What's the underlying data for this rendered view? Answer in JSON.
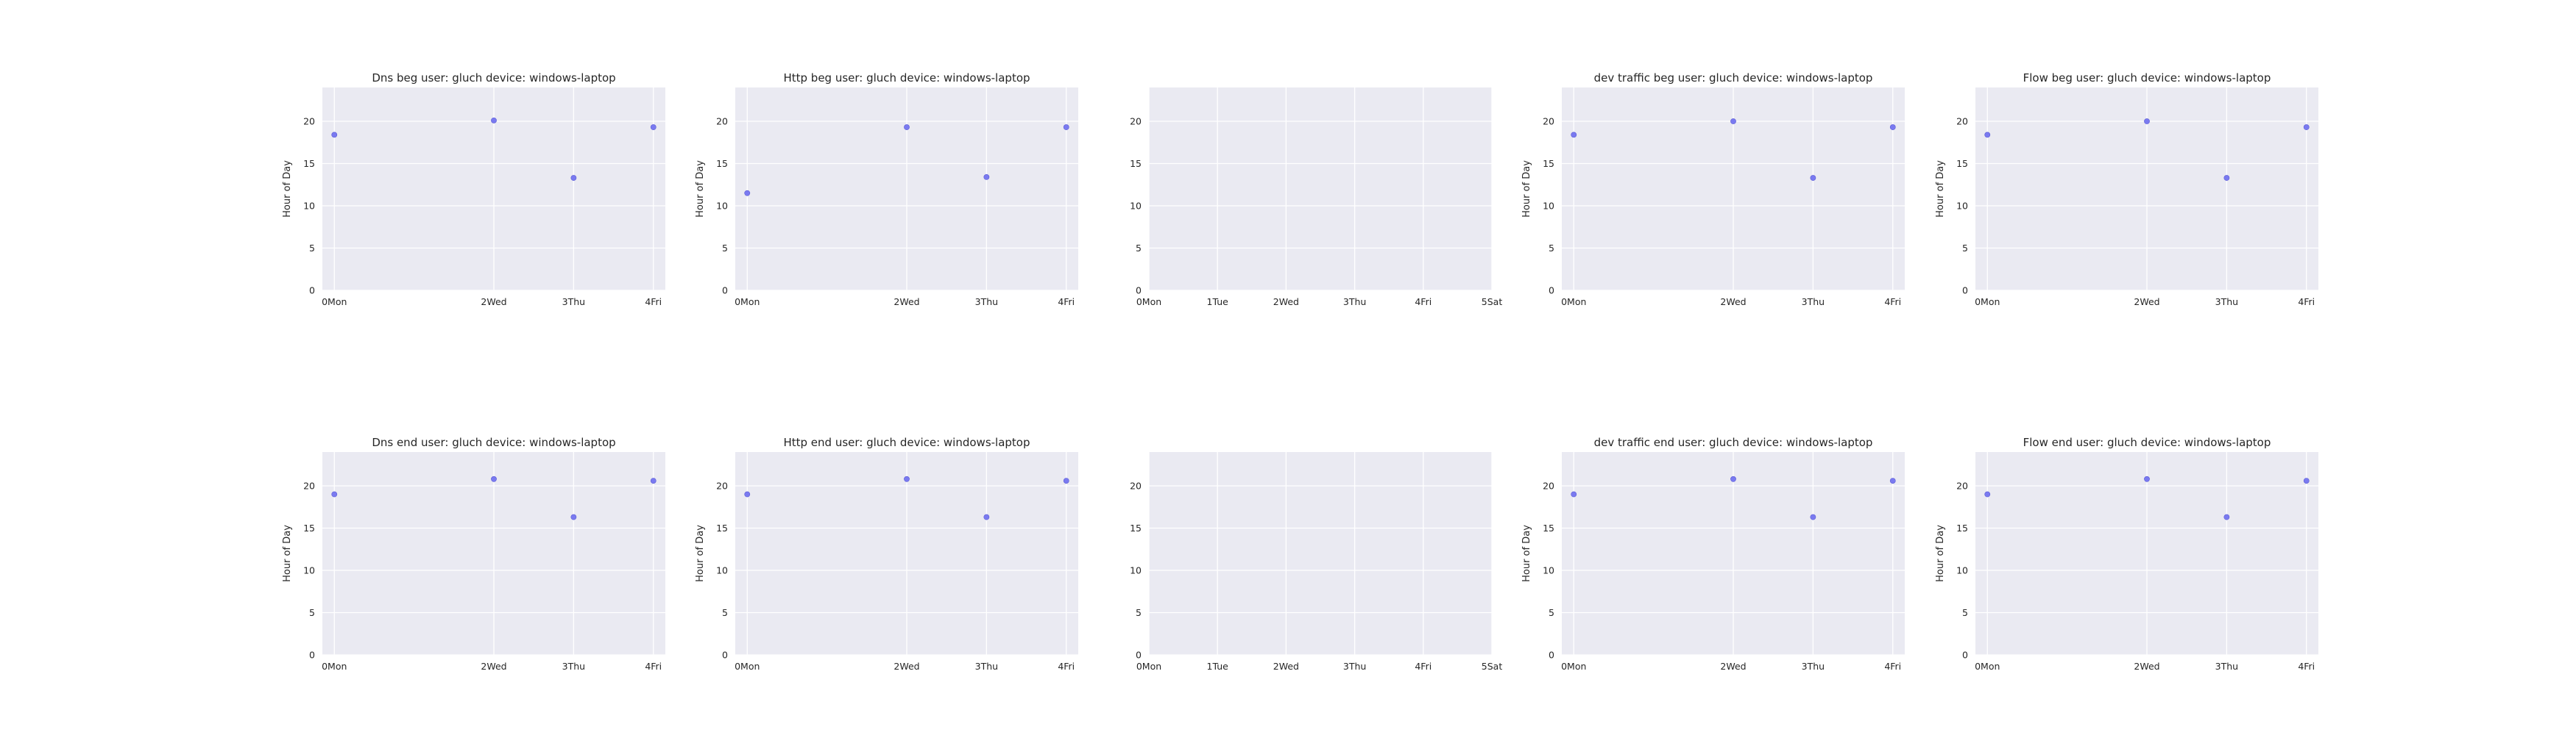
{
  "chart_data": [
    {
      "type": "scatter",
      "title": "Dns beg user: gluch device: windows-laptop",
      "ylabel": "Hour of Day",
      "xticks": [
        "0Mon",
        "2Wed",
        "3Thu",
        "4Fri"
      ],
      "xticks_at": [
        0,
        2,
        3,
        4
      ],
      "xlim": [
        -0.15,
        4.15
      ],
      "yticks": [
        0,
        5,
        10,
        15,
        20
      ],
      "ylim": [
        0,
        24
      ],
      "points": [
        {
          "x": 0,
          "y": 18.4
        },
        {
          "x": 2,
          "y": 20.1
        },
        {
          "x": 3,
          "y": 13.3
        },
        {
          "x": 4,
          "y": 19.3
        }
      ],
      "grid": true,
      "color": "#7a7af0"
    },
    {
      "type": "scatter",
      "title": "Http beg user: gluch device: windows-laptop",
      "ylabel": "Hour of Day",
      "xticks": [
        "0Mon",
        "2Wed",
        "3Thu",
        "4Fri"
      ],
      "xticks_at": [
        0,
        2,
        3,
        4
      ],
      "xlim": [
        -0.15,
        4.15
      ],
      "yticks": [
        0,
        5,
        10,
        15,
        20
      ],
      "ylim": [
        0,
        24
      ],
      "points": [
        {
          "x": 0,
          "y": 11.5
        },
        {
          "x": 2,
          "y": 19.3
        },
        {
          "x": 3,
          "y": 13.4
        },
        {
          "x": 4,
          "y": 19.3
        }
      ],
      "grid": true,
      "color": "#7a7af0"
    },
    {
      "type": "scatter",
      "title": "",
      "ylabel": "",
      "xticks": [
        "0Mon",
        "1Tue",
        "2Wed",
        "3Thu",
        "4Fri",
        "5Sat"
      ],
      "xticks_at": [
        0,
        1,
        2,
        3,
        4,
        5
      ],
      "xlim": [
        0,
        5
      ],
      "yticks": [
        0,
        5,
        10,
        15,
        20
      ],
      "ylim": [
        0,
        24
      ],
      "points": [],
      "grid": true,
      "color": "#7a7af0"
    },
    {
      "type": "scatter",
      "title": "dev traffic beg user: gluch device: windows-laptop",
      "ylabel": "Hour of Day",
      "xticks": [
        "0Mon",
        "2Wed",
        "3Thu",
        "4Fri"
      ],
      "xticks_at": [
        0,
        2,
        3,
        4
      ],
      "xlim": [
        -0.15,
        4.15
      ],
      "yticks": [
        0,
        5,
        10,
        15,
        20
      ],
      "ylim": [
        0,
        24
      ],
      "points": [
        {
          "x": 0,
          "y": 18.4
        },
        {
          "x": 2,
          "y": 20.0
        },
        {
          "x": 3,
          "y": 13.3
        },
        {
          "x": 4,
          "y": 19.3
        }
      ],
      "grid": true,
      "color": "#7a7af0"
    },
    {
      "type": "scatter",
      "title": "Flow beg user: gluch device: windows-laptop",
      "ylabel": "Hour of Day",
      "xticks": [
        "0Mon",
        "2Wed",
        "3Thu",
        "4Fri"
      ],
      "xticks_at": [
        0,
        2,
        3,
        4
      ],
      "xlim": [
        -0.15,
        4.15
      ],
      "yticks": [
        0,
        5,
        10,
        15,
        20
      ],
      "ylim": [
        0,
        24
      ],
      "points": [
        {
          "x": 0,
          "y": 18.4
        },
        {
          "x": 2,
          "y": 20.0
        },
        {
          "x": 3,
          "y": 13.3
        },
        {
          "x": 4,
          "y": 19.3
        }
      ],
      "grid": true,
      "color": "#7a7af0"
    },
    {
      "type": "scatter",
      "title": "Dns end user: gluch device: windows-laptop",
      "ylabel": "Hour of Day",
      "xticks": [
        "0Mon",
        "2Wed",
        "3Thu",
        "4Fri"
      ],
      "xticks_at": [
        0,
        2,
        3,
        4
      ],
      "xlim": [
        -0.15,
        4.15
      ],
      "yticks": [
        0,
        5,
        10,
        15,
        20
      ],
      "ylim": [
        0,
        24
      ],
      "points": [
        {
          "x": 0,
          "y": 19.0
        },
        {
          "x": 2,
          "y": 20.8
        },
        {
          "x": 3,
          "y": 16.3
        },
        {
          "x": 4,
          "y": 20.6
        }
      ],
      "grid": true,
      "color": "#7a7af0"
    },
    {
      "type": "scatter",
      "title": "Http end user: gluch device: windows-laptop",
      "ylabel": "Hour of Day",
      "xticks": [
        "0Mon",
        "2Wed",
        "3Thu",
        "4Fri"
      ],
      "xticks_at": [
        0,
        2,
        3,
        4
      ],
      "xlim": [
        -0.15,
        4.15
      ],
      "yticks": [
        0,
        5,
        10,
        15,
        20
      ],
      "ylim": [
        0,
        24
      ],
      "points": [
        {
          "x": 0,
          "y": 19.0
        },
        {
          "x": 2,
          "y": 20.8
        },
        {
          "x": 3,
          "y": 16.3
        },
        {
          "x": 4,
          "y": 20.6
        }
      ],
      "grid": true,
      "color": "#7a7af0"
    },
    {
      "type": "scatter",
      "title": "",
      "ylabel": "",
      "xticks": [
        "0Mon",
        "1Tue",
        "2Wed",
        "3Thu",
        "4Fri",
        "5Sat"
      ],
      "xticks_at": [
        0,
        1,
        2,
        3,
        4,
        5
      ],
      "xlim": [
        0,
        5
      ],
      "yticks": [
        0,
        5,
        10,
        15,
        20
      ],
      "ylim": [
        0,
        24
      ],
      "points": [],
      "grid": true,
      "color": "#7a7af0"
    },
    {
      "type": "scatter",
      "title": "dev traffic end user: gluch device: windows-laptop",
      "ylabel": "Hour of Day",
      "xticks": [
        "0Mon",
        "2Wed",
        "3Thu",
        "4Fri"
      ],
      "xticks_at": [
        0,
        2,
        3,
        4
      ],
      "xlim": [
        -0.15,
        4.15
      ],
      "yticks": [
        0,
        5,
        10,
        15,
        20
      ],
      "ylim": [
        0,
        24
      ],
      "points": [
        {
          "x": 0,
          "y": 19.0
        },
        {
          "x": 2,
          "y": 20.8
        },
        {
          "x": 3,
          "y": 16.3
        },
        {
          "x": 4,
          "y": 20.6
        }
      ],
      "grid": true,
      "color": "#7a7af0"
    },
    {
      "type": "scatter",
      "title": "Flow end user: gluch device: windows-laptop",
      "ylabel": "Hour of Day",
      "xticks": [
        "0Mon",
        "2Wed",
        "3Thu",
        "4Fri"
      ],
      "xticks_at": [
        0,
        2,
        3,
        4
      ],
      "xlim": [
        -0.15,
        4.15
      ],
      "yticks": [
        0,
        5,
        10,
        15,
        20
      ],
      "ylim": [
        0,
        24
      ],
      "points": [
        {
          "x": 0,
          "y": 19.0
        },
        {
          "x": 2,
          "y": 20.8
        },
        {
          "x": 3,
          "y": 16.3
        },
        {
          "x": 4,
          "y": 20.6
        }
      ],
      "grid": true,
      "color": "#7a7af0"
    }
  ],
  "style": {
    "panel_bg": "#eaeaf2",
    "grid_color": "#ffffff",
    "text_color": "#262626"
  }
}
